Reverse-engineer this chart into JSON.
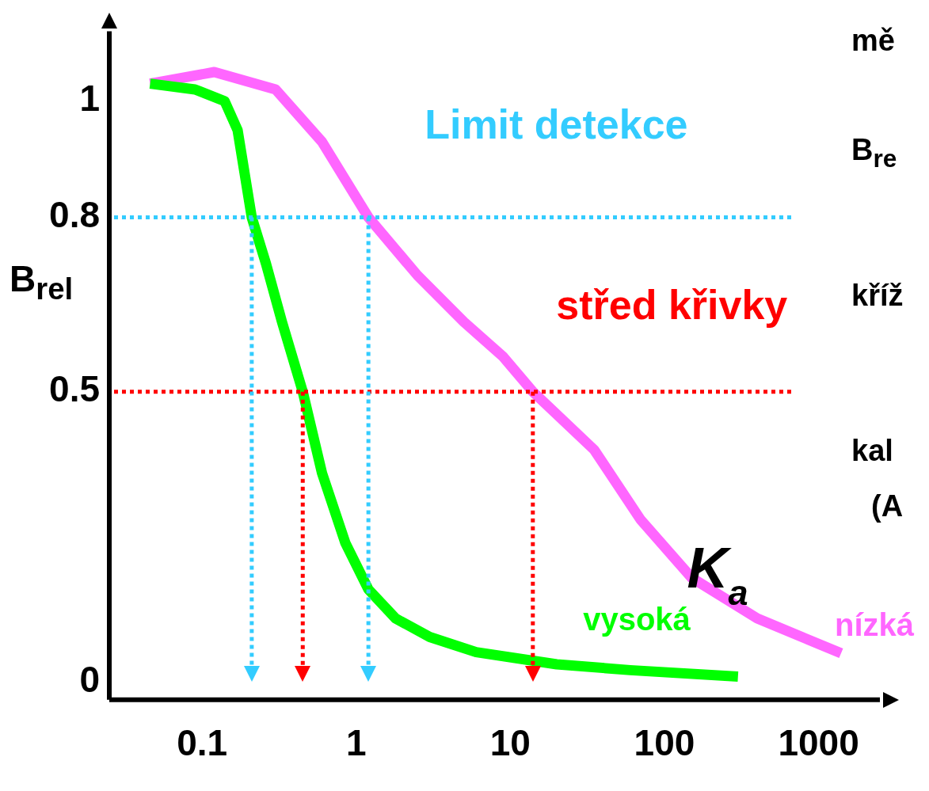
{
  "chart_data": {
    "type": "line",
    "ylabel": "B$_{rel}$",
    "xlim": [
      0.025,
      2500
    ],
    "xticks": [
      0.1,
      1,
      10,
      100,
      1000
    ],
    "log": "x",
    "ylim": [
      -0.03,
      1.12
    ],
    "yticks": [
      0,
      0.5,
      0.8,
      1
    ],
    "grid": false,
    "legend": false,
    "marker": "none",
    "line_style": "solid",
    "series": [
      {
        "name": "vysoká",
        "color": "#00ff00",
        "x": [
          0.046,
          0.09,
          0.14,
          0.17,
          0.21,
          0.26,
          0.33,
          0.45,
          0.6,
          0.85,
          1.2,
          1.8,
          3,
          6,
          20,
          60,
          300
        ],
        "values": [
          1.03,
          1.02,
          1.0,
          0.95,
          0.8,
          0.72,
          0.62,
          0.5,
          0.36,
          0.24,
          0.16,
          0.11,
          0.078,
          0.052,
          0.031,
          0.021,
          0.01
        ]
      },
      {
        "name": "nízká",
        "color": "#ff66ff",
        "x": [
          0.046,
          0.12,
          0.3,
          0.6,
          1.2,
          2.5,
          5,
          9,
          14,
          35,
          70,
          150,
          400,
          1400
        ],
        "values": [
          1.03,
          1.05,
          1.02,
          0.93,
          0.8,
          0.7,
          0.62,
          0.56,
          0.5,
          0.4,
          0.28,
          0.18,
          0.11,
          0.05
        ]
      }
    ],
    "ref_lines": [
      {
        "axis": "y",
        "value": 0.8,
        "label": "Limit detekce",
        "color": "#33ccff",
        "line_style": "dotted"
      },
      {
        "axis": "y",
        "value": 0.5,
        "label": "střed křivky",
        "color": "#ff0000",
        "line_style": "dotted"
      },
      {
        "axis": "x",
        "value": 0.21,
        "color": "#33ccff",
        "line_style": "dotted"
      },
      {
        "axis": "x",
        "value": 1.2,
        "color": "#33ccff",
        "line_style": "dotted"
      },
      {
        "axis": "x",
        "value": 0.45,
        "color": "#ff0000",
        "line_style": "dotted"
      },
      {
        "axis": "x",
        "value": 14,
        "color": "#ff0000",
        "line_style": "dotted"
      }
    ],
    "annotations": [
      {
        "text": "K$_{a}$",
        "x": 140,
        "y": 0.19
      },
      "mě",
      "B$_{re}$",
      "kříž",
      "kal",
      "(A"
    ]
  }
}
